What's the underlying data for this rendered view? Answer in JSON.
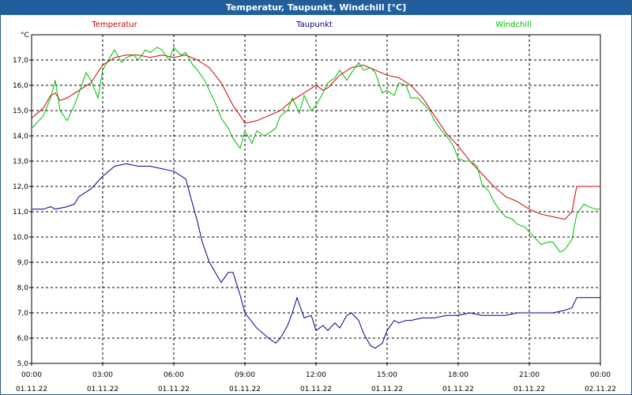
{
  "window": {
    "title": "Temperatur, Taupunkt, Windchill [°C]"
  },
  "chart_data": {
    "type": "line",
    "title": "Temperatur, Taupunkt, Windchill [°C]",
    "ylabel": "°C",
    "ylim": [
      5.0,
      18.0
    ],
    "xlim": [
      0,
      24
    ],
    "grid": true,
    "legend_position": "top",
    "y_ticks": [
      "5,0",
      "6,0",
      "7,0",
      "8,0",
      "9,0",
      "10,0",
      "11,0",
      "12,0",
      "13,0",
      "14,0",
      "15,0",
      "16,0",
      "17,0"
    ],
    "x_ticks": [
      {
        "time": "00:00",
        "date": "01.11.22"
      },
      {
        "time": "03:00",
        "date": "01.11.22"
      },
      {
        "time": "06:00",
        "date": "01.11.22"
      },
      {
        "time": "09:00",
        "date": "01.11.22"
      },
      {
        "time": "12:00",
        "date": "01.11.22"
      },
      {
        "time": "15:00",
        "date": "01.11.22"
      },
      {
        "time": "18:00",
        "date": "01.11.22"
      },
      {
        "time": "21:00",
        "date": "01.11.22"
      },
      {
        "time": "00:00",
        "date": "02.11.22"
      }
    ],
    "series": [
      {
        "name": "Temperatur",
        "color": "#cc0000",
        "x": [
          0,
          0.5,
          0.8,
          1.0,
          1.2,
          1.5,
          2.0,
          2.5,
          3.0,
          3.5,
          4.0,
          4.5,
          5.0,
          5.5,
          6.0,
          6.5,
          7.0,
          7.5,
          8.0,
          8.5,
          8.8,
          9.0,
          9.5,
          10.0,
          10.5,
          11.0,
          11.5,
          12.0,
          12.3,
          12.5,
          13.0,
          13.5,
          14.0,
          14.5,
          15.0,
          15.5,
          16.0,
          16.5,
          17.0,
          17.5,
          18.0,
          18.5,
          19.0,
          19.5,
          20.0,
          20.5,
          21.0,
          21.5,
          22.0,
          22.5,
          22.8,
          23.0,
          23.5,
          24.0
        ],
        "y": [
          14.7,
          15.1,
          15.6,
          15.7,
          15.4,
          15.5,
          15.8,
          16.1,
          16.8,
          17.1,
          17.2,
          17.2,
          17.1,
          17.2,
          17.1,
          17.2,
          17.0,
          16.7,
          16.1,
          15.2,
          14.8,
          14.5,
          14.6,
          14.8,
          15.0,
          15.4,
          15.7,
          16.0,
          15.8,
          15.9,
          16.4,
          16.7,
          16.8,
          16.6,
          16.4,
          16.3,
          16.0,
          15.5,
          14.8,
          14.1,
          13.6,
          13.0,
          12.5,
          12.0,
          11.6,
          11.4,
          11.1,
          10.9,
          10.8,
          10.7,
          11.0,
          12.0,
          12.0,
          12.0
        ]
      },
      {
        "name": "Taupunkt",
        "color": "#00008b",
        "x": [
          0,
          0.5,
          0.8,
          1.0,
          1.5,
          1.8,
          2.0,
          2.5,
          3.0,
          3.5,
          4.0,
          4.5,
          5.0,
          5.5,
          6.0,
          6.5,
          7.0,
          7.2,
          7.5,
          8.0,
          8.3,
          8.5,
          8.8,
          9.0,
          9.5,
          10.0,
          10.3,
          10.5,
          10.8,
          11.0,
          11.2,
          11.5,
          11.8,
          12.0,
          12.3,
          12.5,
          12.8,
          13.0,
          13.3,
          13.5,
          13.8,
          14.0,
          14.3,
          14.5,
          14.8,
          15.0,
          15.3,
          15.5,
          15.8,
          16.0,
          16.5,
          17.0,
          17.5,
          18.0,
          18.5,
          19.0,
          19.5,
          20.0,
          20.5,
          21.0,
          21.5,
          22.0,
          22.5,
          22.8,
          23.0,
          23.5,
          24.0
        ],
        "y": [
          11.1,
          11.1,
          11.2,
          11.1,
          11.2,
          11.3,
          11.6,
          11.9,
          12.4,
          12.8,
          12.9,
          12.8,
          12.8,
          12.7,
          12.6,
          12.3,
          10.6,
          9.8,
          9.0,
          8.2,
          8.6,
          8.6,
          7.7,
          7.0,
          6.4,
          6.0,
          5.8,
          6.0,
          6.5,
          7.0,
          7.6,
          6.8,
          6.9,
          6.3,
          6.5,
          6.3,
          6.6,
          6.4,
          6.9,
          7.0,
          6.7,
          6.2,
          5.7,
          5.6,
          5.8,
          6.3,
          6.7,
          6.6,
          6.7,
          6.7,
          6.8,
          6.8,
          6.9,
          6.9,
          7.0,
          6.9,
          6.9,
          6.9,
          7.0,
          7.0,
          7.0,
          7.0,
          7.1,
          7.2,
          7.6,
          7.6,
          7.6
        ]
      },
      {
        "name": "Windchill",
        "color": "#00bb00",
        "x": [
          0,
          0.3,
          0.5,
          0.8,
          1.0,
          1.2,
          1.5,
          1.8,
          2.0,
          2.3,
          2.5,
          2.8,
          3.0,
          3.3,
          3.5,
          3.8,
          4.0,
          4.3,
          4.5,
          4.8,
          5.0,
          5.3,
          5.5,
          5.8,
          6.0,
          6.3,
          6.5,
          6.8,
          7.0,
          7.3,
          7.5,
          7.8,
          8.0,
          8.3,
          8.5,
          8.8,
          9.0,
          9.3,
          9.5,
          9.8,
          10.0,
          10.3,
          10.5,
          10.8,
          11.0,
          11.3,
          11.5,
          11.8,
          12.0,
          12.3,
          12.5,
          12.8,
          13.0,
          13.3,
          13.5,
          13.8,
          14.0,
          14.3,
          14.5,
          14.8,
          15.0,
          15.3,
          15.5,
          15.8,
          16.0,
          16.3,
          16.5,
          16.8,
          17.0,
          17.3,
          17.5,
          17.8,
          18.0,
          18.3,
          18.5,
          18.8,
          19.0,
          19.3,
          19.5,
          19.8,
          20.0,
          20.3,
          20.5,
          20.8,
          21.0,
          21.3,
          21.5,
          21.8,
          22.0,
          22.3,
          22.5,
          22.8,
          23.0,
          23.3,
          23.5,
          23.8,
          24.0
        ],
        "y": [
          14.3,
          14.6,
          14.8,
          15.5,
          16.2,
          15.0,
          14.6,
          15.2,
          15.7,
          16.5,
          16.2,
          15.5,
          16.6,
          17.1,
          17.4,
          16.9,
          17.1,
          17.2,
          17.0,
          17.4,
          17.3,
          17.5,
          17.4,
          17.0,
          17.5,
          17.2,
          17.3,
          16.8,
          16.6,
          16.2,
          15.8,
          15.2,
          14.7,
          14.3,
          13.9,
          13.5,
          14.2,
          13.7,
          14.2,
          14.0,
          14.1,
          14.3,
          14.8,
          15.0,
          15.5,
          14.9,
          15.6,
          15.0,
          15.2,
          15.7,
          16.1,
          16.3,
          16.6,
          16.2,
          16.5,
          16.9,
          16.6,
          16.7,
          16.5,
          15.7,
          15.8,
          15.6,
          16.1,
          16.0,
          15.5,
          15.5,
          15.3,
          15.0,
          14.6,
          14.2,
          14.0,
          13.6,
          13.1,
          13.0,
          13.0,
          12.8,
          12.1,
          11.8,
          11.4,
          11.0,
          10.8,
          10.7,
          10.5,
          10.4,
          10.2,
          9.9,
          9.7,
          9.8,
          9.8,
          9.4,
          9.5,
          9.9,
          10.9,
          11.3,
          11.2,
          11.1,
          11.1
        ]
      }
    ]
  }
}
